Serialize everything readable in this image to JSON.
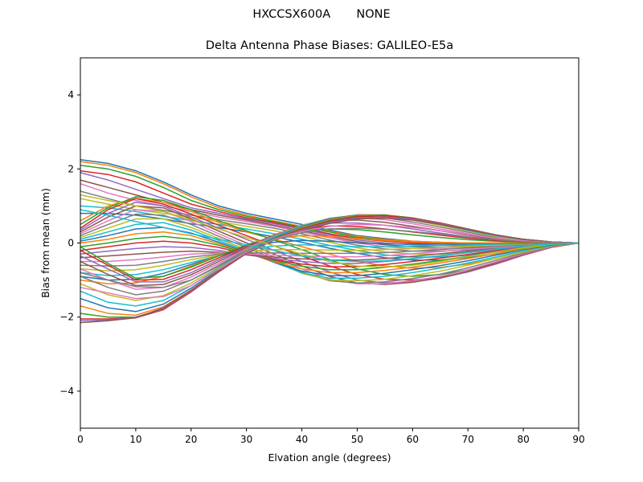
{
  "header": {
    "antenna": "HXCCSX600A",
    "radome": "NONE"
  },
  "chart_data": {
    "type": "line",
    "title": "Delta Antenna Phase Biases: GALILEO-E5a",
    "xlabel": "Elvation angle (degrees)",
    "ylabel": "Bias from mean (mm)",
    "xlim": [
      0,
      90
    ],
    "ylim": [
      -5,
      5
    ],
    "xticks": [
      "0",
      "10",
      "20",
      "30",
      "40",
      "50",
      "60",
      "70",
      "80",
      "90"
    ],
    "yticks": [
      "−4",
      "−2",
      "0",
      "2",
      "4"
    ],
    "x": [
      0,
      5,
      10,
      15,
      20,
      25,
      30,
      35,
      40,
      45,
      50,
      55,
      60,
      65,
      70,
      75,
      80,
      85,
      90
    ],
    "colors": [
      "#1f77b4",
      "#ff7f0e",
      "#2ca02c",
      "#d62728",
      "#9467bd",
      "#8c564b",
      "#e377c2",
      "#7f7f7f",
      "#bcbd22",
      "#17becf"
    ],
    "grid": false,
    "legend": "none",
    "series": [
      {
        "values": [
          2.25,
          2.15,
          1.95,
          1.65,
          1.3,
          1.0,
          0.8,
          0.65,
          0.5,
          0.35,
          0.2,
          0.12,
          0.05,
          0.02,
          0.0,
          0.0,
          0.0,
          0.0,
          0.0
        ]
      },
      {
        "values": [
          2.2,
          2.1,
          1.9,
          1.6,
          1.25,
          0.95,
          0.75,
          0.6,
          0.45,
          0.32,
          0.18,
          0.1,
          0.05,
          0.02,
          0.0,
          0.0,
          0.0,
          0.0,
          0.0
        ]
      },
      {
        "values": [
          2.1,
          2.0,
          1.8,
          1.5,
          1.15,
          0.9,
          0.72,
          0.58,
          0.43,
          0.3,
          0.15,
          0.08,
          0.03,
          0.0,
          -0.02,
          -0.02,
          -0.01,
          0.0,
          0.0
        ]
      },
      {
        "values": [
          1.95,
          1.85,
          1.65,
          1.35,
          1.05,
          0.85,
          0.68,
          0.55,
          0.4,
          0.25,
          0.12,
          0.05,
          0.0,
          -0.03,
          -0.04,
          -0.03,
          -0.02,
          -0.01,
          0.0
        ]
      },
      {
        "values": [
          1.9,
          1.7,
          1.45,
          1.2,
          0.95,
          0.8,
          0.65,
          0.52,
          0.37,
          0.22,
          0.08,
          0.0,
          -0.05,
          -0.07,
          -0.07,
          -0.05,
          -0.03,
          -0.01,
          0.0
        ]
      },
      {
        "values": [
          1.7,
          1.5,
          1.3,
          1.1,
          0.9,
          0.75,
          0.62,
          0.48,
          0.33,
          0.18,
          0.04,
          -0.05,
          -0.1,
          -0.12,
          -0.1,
          -0.07,
          -0.04,
          -0.02,
          0.0
        ]
      },
      {
        "values": [
          1.6,
          1.35,
          1.15,
          1.0,
          0.85,
          0.7,
          0.58,
          0.45,
          0.3,
          0.14,
          0.0,
          -0.1,
          -0.15,
          -0.16,
          -0.14,
          -0.1,
          -0.06,
          -0.03,
          0.0
        ]
      },
      {
        "values": [
          1.4,
          1.2,
          1.0,
          0.88,
          0.75,
          0.63,
          0.52,
          0.4,
          0.25,
          0.08,
          -0.06,
          -0.16,
          -0.22,
          -0.22,
          -0.19,
          -0.14,
          -0.08,
          -0.03,
          0.0
        ]
      },
      {
        "values": [
          1.2,
          1.05,
          0.9,
          0.8,
          0.7,
          0.58,
          0.45,
          0.33,
          0.18,
          0.02,
          -0.13,
          -0.24,
          -0.3,
          -0.3,
          -0.26,
          -0.19,
          -0.11,
          -0.04,
          0.0
        ]
      },
      {
        "values": [
          1.0,
          0.95,
          0.85,
          0.72,
          0.6,
          0.5,
          0.38,
          0.25,
          0.1,
          -0.06,
          -0.2,
          -0.32,
          -0.38,
          -0.38,
          -0.33,
          -0.24,
          -0.14,
          -0.05,
          0.0
        ]
      },
      {
        "values": [
          0.8,
          0.8,
          0.75,
          0.65,
          0.52,
          0.42,
          0.3,
          0.17,
          0.02,
          -0.14,
          -0.28,
          -0.4,
          -0.46,
          -0.46,
          -0.4,
          -0.3,
          -0.17,
          -0.06,
          0.0
        ]
      },
      {
        "values": [
          0.6,
          1.0,
          1.2,
          1.1,
          0.85,
          0.55,
          0.3,
          0.1,
          -0.1,
          -0.3,
          -0.5,
          -0.62,
          -0.68,
          -0.66,
          -0.57,
          -0.42,
          -0.25,
          -0.09,
          0.0
        ]
      },
      {
        "values": [
          0.5,
          0.95,
          1.25,
          1.15,
          0.9,
          0.6,
          0.33,
          0.08,
          -0.18,
          -0.45,
          -0.7,
          -0.85,
          -0.9,
          -0.85,
          -0.72,
          -0.53,
          -0.31,
          -0.11,
          0.0
        ]
      },
      {
        "values": [
          0.4,
          0.9,
          1.2,
          1.05,
          0.78,
          0.48,
          0.2,
          -0.08,
          -0.35,
          -0.62,
          -0.85,
          -0.98,
          -1.0,
          -0.93,
          -0.78,
          -0.57,
          -0.33,
          -0.12,
          0.0
        ]
      },
      {
        "values": [
          0.35,
          0.8,
          1.1,
          1.0,
          0.7,
          0.4,
          0.1,
          -0.2,
          -0.5,
          -0.78,
          -1.0,
          -1.08,
          -1.05,
          -0.95,
          -0.78,
          -0.56,
          -0.32,
          -0.11,
          0.0
        ]
      },
      {
        "values": [
          0.3,
          0.7,
          1.0,
          0.95,
          0.65,
          0.32,
          0.0,
          -0.3,
          -0.62,
          -0.9,
          -1.08,
          -1.12,
          -1.06,
          -0.94,
          -0.76,
          -0.54,
          -0.31,
          -0.11,
          0.0
        ]
      },
      {
        "values": [
          0.25,
          0.6,
          0.9,
          0.85,
          0.58,
          0.25,
          -0.07,
          -0.38,
          -0.7,
          -0.98,
          -1.1,
          -1.1,
          -1.02,
          -0.9,
          -0.72,
          -0.51,
          -0.29,
          -0.1,
          0.0
        ]
      },
      {
        "values": [
          0.2,
          0.5,
          0.78,
          0.75,
          0.5,
          0.18,
          -0.12,
          -0.44,
          -0.78,
          -1.02,
          -1.08,
          -1.05,
          -0.96,
          -0.84,
          -0.67,
          -0.47,
          -0.27,
          -0.09,
          0.0
        ]
      },
      {
        "values": [
          0.15,
          0.4,
          0.65,
          0.65,
          0.42,
          0.12,
          -0.18,
          -0.5,
          -0.82,
          -1.0,
          -1.02,
          -0.98,
          -0.88,
          -0.76,
          -0.6,
          -0.42,
          -0.24,
          -0.08,
          0.0
        ]
      },
      {
        "values": [
          0.1,
          0.3,
          0.5,
          0.55,
          0.35,
          0.07,
          -0.22,
          -0.52,
          -0.8,
          -0.95,
          -0.95,
          -0.9,
          -0.8,
          -0.68,
          -0.54,
          -0.38,
          -0.21,
          -0.07,
          0.0
        ]
      },
      {
        "values": [
          0.05,
          0.2,
          0.38,
          0.42,
          0.27,
          0.02,
          -0.25,
          -0.52,
          -0.76,
          -0.88,
          -0.88,
          -0.82,
          -0.72,
          -0.61,
          -0.48,
          -0.33,
          -0.18,
          -0.06,
          0.0
        ]
      },
      {
        "values": [
          0.0,
          0.1,
          0.25,
          0.3,
          0.2,
          -0.02,
          -0.27,
          -0.5,
          -0.7,
          -0.8,
          -0.8,
          -0.74,
          -0.65,
          -0.54,
          -0.42,
          -0.29,
          -0.16,
          -0.05,
          0.0
        ]
      },
      {
        "values": [
          -0.1,
          0.0,
          0.12,
          0.18,
          0.1,
          -0.06,
          -0.28,
          -0.47,
          -0.63,
          -0.72,
          -0.72,
          -0.66,
          -0.57,
          -0.47,
          -0.36,
          -0.25,
          -0.14,
          -0.05,
          0.0
        ]
      },
      {
        "values": [
          -0.2,
          -0.1,
          0.0,
          0.05,
          0.0,
          -0.12,
          -0.3,
          -0.45,
          -0.57,
          -0.64,
          -0.64,
          -0.58,
          -0.5,
          -0.41,
          -0.31,
          -0.21,
          -0.12,
          -0.04,
          0.0
        ]
      },
      {
        "values": [
          -0.3,
          -0.22,
          -0.15,
          -0.1,
          -0.12,
          -0.2,
          -0.32,
          -0.42,
          -0.5,
          -0.55,
          -0.55,
          -0.5,
          -0.43,
          -0.35,
          -0.26,
          -0.18,
          -0.1,
          -0.03,
          0.0
        ]
      },
      {
        "values": [
          -0.4,
          -0.35,
          -0.3,
          -0.25,
          -0.22,
          -0.25,
          -0.32,
          -0.38,
          -0.43,
          -0.46,
          -0.46,
          -0.42,
          -0.36,
          -0.29,
          -0.22,
          -0.15,
          -0.08,
          -0.03,
          0.0
        ]
      },
      {
        "values": [
          -0.5,
          -0.5,
          -0.45,
          -0.38,
          -0.3,
          -0.27,
          -0.3,
          -0.33,
          -0.35,
          -0.37,
          -0.37,
          -0.34,
          -0.29,
          -0.23,
          -0.17,
          -0.12,
          -0.06,
          -0.02,
          0.0
        ]
      },
      {
        "values": [
          -0.6,
          -0.62,
          -0.6,
          -0.5,
          -0.38,
          -0.3,
          -0.27,
          -0.27,
          -0.28,
          -0.28,
          -0.28,
          -0.26,
          -0.22,
          -0.18,
          -0.13,
          -0.09,
          -0.05,
          -0.02,
          0.0
        ]
      },
      {
        "values": [
          -0.7,
          -0.75,
          -0.72,
          -0.6,
          -0.45,
          -0.32,
          -0.22,
          -0.18,
          -0.18,
          -0.19,
          -0.2,
          -0.18,
          -0.15,
          -0.12,
          -0.09,
          -0.06,
          -0.03,
          -0.01,
          0.0
        ]
      },
      {
        "values": [
          -0.8,
          -0.88,
          -0.85,
          -0.72,
          -0.53,
          -0.34,
          -0.18,
          -0.08,
          -0.05,
          -0.07,
          -0.1,
          -0.1,
          -0.09,
          -0.07,
          -0.05,
          -0.03,
          -0.02,
          -0.01,
          0.0
        ]
      },
      {
        "values": [
          -0.9,
          -1.0,
          -0.98,
          -0.82,
          -0.58,
          -0.34,
          -0.12,
          0.02,
          0.07,
          0.05,
          0.0,
          -0.02,
          -0.03,
          -0.03,
          -0.02,
          -0.01,
          -0.01,
          0.0,
          0.0
        ]
      },
      {
        "values": [
          -1.0,
          -1.1,
          -1.08,
          -0.9,
          -0.62,
          -0.33,
          -0.06,
          0.12,
          0.2,
          0.18,
          0.12,
          0.07,
          0.03,
          0.01,
          0.0,
          0.0,
          0.0,
          0.0,
          0.0
        ]
      },
      {
        "values": [
          -0.1,
          -0.55,
          -0.95,
          -0.9,
          -0.65,
          -0.35,
          -0.05,
          0.18,
          0.32,
          0.38,
          0.36,
          0.3,
          0.22,
          0.15,
          0.09,
          0.05,
          0.02,
          0.01,
          0.0
        ]
      },
      {
        "values": [
          -0.2,
          -0.6,
          -1.0,
          -0.98,
          -0.72,
          -0.4,
          -0.08,
          0.2,
          0.38,
          0.46,
          0.45,
          0.38,
          0.3,
          0.21,
          0.13,
          0.07,
          0.03,
          0.01,
          0.0
        ]
      },
      {
        "values": [
          -0.35,
          -0.7,
          -1.05,
          -1.05,
          -0.8,
          -0.45,
          -0.1,
          0.22,
          0.44,
          0.54,
          0.54,
          0.48,
          0.38,
          0.27,
          0.17,
          0.09,
          0.04,
          0.01,
          0.0
        ]
      },
      {
        "values": [
          -0.5,
          -0.85,
          -1.15,
          -1.12,
          -0.86,
          -0.5,
          -0.12,
          0.22,
          0.47,
          0.6,
          0.62,
          0.56,
          0.45,
          0.33,
          0.21,
          0.11,
          0.05,
          0.01,
          0.0
        ]
      },
      {
        "values": [
          -0.7,
          -1.0,
          -1.25,
          -1.2,
          -0.92,
          -0.55,
          -0.15,
          0.2,
          0.48,
          0.64,
          0.68,
          0.63,
          0.52,
          0.38,
          0.25,
          0.14,
          0.06,
          0.02,
          0.0
        ]
      },
      {
        "values": [
          -0.9,
          -1.2,
          -1.4,
          -1.3,
          -1.0,
          -0.6,
          -0.18,
          0.18,
          0.48,
          0.66,
          0.72,
          0.68,
          0.57,
          0.43,
          0.29,
          0.16,
          0.07,
          0.02,
          0.0
        ]
      },
      {
        "values": [
          -1.1,
          -1.4,
          -1.55,
          -1.42,
          -1.08,
          -0.65,
          -0.2,
          0.17,
          0.47,
          0.67,
          0.75,
          0.72,
          0.62,
          0.47,
          0.32,
          0.18,
          0.08,
          0.02,
          0.0
        ]
      },
      {
        "values": [
          -1.3,
          -1.6,
          -1.7,
          -1.55,
          -1.15,
          -0.68,
          -0.22,
          0.16,
          0.46,
          0.66,
          0.76,
          0.75,
          0.65,
          0.5,
          0.34,
          0.2,
          0.09,
          0.02,
          0.0
        ]
      },
      {
        "values": [
          -1.5,
          -1.75,
          -1.85,
          -1.65,
          -1.22,
          -0.72,
          -0.24,
          0.14,
          0.44,
          0.65,
          0.76,
          0.76,
          0.67,
          0.52,
          0.36,
          0.21,
          0.1,
          0.03,
          0.0
        ]
      },
      {
        "values": [
          -1.7,
          -1.9,
          -1.95,
          -1.72,
          -1.27,
          -0.75,
          -0.26,
          0.12,
          0.42,
          0.63,
          0.75,
          0.76,
          0.68,
          0.54,
          0.37,
          0.22,
          0.1,
          0.03,
          0.0
        ]
      },
      {
        "values": [
          -1.9,
          -2.0,
          -2.0,
          -1.78,
          -1.3,
          -0.77,
          -0.27,
          0.11,
          0.4,
          0.61,
          0.73,
          0.75,
          0.68,
          0.54,
          0.38,
          0.22,
          0.1,
          0.03,
          0.0
        ]
      },
      {
        "values": [
          -2.05,
          -2.05,
          -2.02,
          -1.8,
          -1.32,
          -0.78,
          -0.28,
          0.1,
          0.38,
          0.59,
          0.71,
          0.73,
          0.67,
          0.54,
          0.38,
          0.22,
          0.1,
          0.03,
          0.0
        ]
      },
      {
        "values": [
          -2.1,
          -2.08,
          -2.0,
          -1.78,
          -1.3,
          -0.77,
          -0.28,
          0.09,
          0.36,
          0.56,
          0.68,
          0.7,
          0.65,
          0.52,
          0.37,
          0.22,
          0.1,
          0.03,
          0.0
        ]
      },
      {
        "values": [
          -2.15,
          -2.1,
          -2.02,
          -1.75,
          -1.28,
          -0.76,
          -0.28,
          0.08,
          0.34,
          0.53,
          0.65,
          0.67,
          0.62,
          0.5,
          0.36,
          0.21,
          0.1,
          0.03,
          0.0
        ]
      },
      {
        "values": [
          -1.2,
          -1.35,
          -1.5,
          -1.45,
          -1.15,
          -0.7,
          -0.25,
          0.1,
          0.32,
          0.45,
          0.5,
          0.48,
          0.42,
          0.33,
          0.23,
          0.13,
          0.06,
          0.02,
          0.0
        ]
      },
      {
        "values": [
          -0.8,
          -1.0,
          -1.18,
          -1.2,
          -1.0,
          -0.62,
          -0.22,
          0.08,
          0.28,
          0.38,
          0.4,
          0.37,
          0.31,
          0.24,
          0.16,
          0.09,
          0.04,
          0.01,
          0.0
        ]
      },
      {
        "values": [
          1.3,
          1.15,
          1.0,
          0.85,
          0.62,
          0.38,
          0.15,
          -0.08,
          -0.3,
          -0.5,
          -0.62,
          -0.65,
          -0.6,
          -0.5,
          -0.37,
          -0.24,
          -0.13,
          -0.04,
          0.0
        ]
      },
      {
        "values": [
          0.9,
          0.75,
          0.58,
          0.42,
          0.25,
          0.1,
          -0.05,
          -0.2,
          -0.35,
          -0.46,
          -0.5,
          -0.48,
          -0.42,
          -0.34,
          -0.25,
          -0.16,
          -0.08,
          -0.03,
          0.0
        ]
      }
    ]
  }
}
